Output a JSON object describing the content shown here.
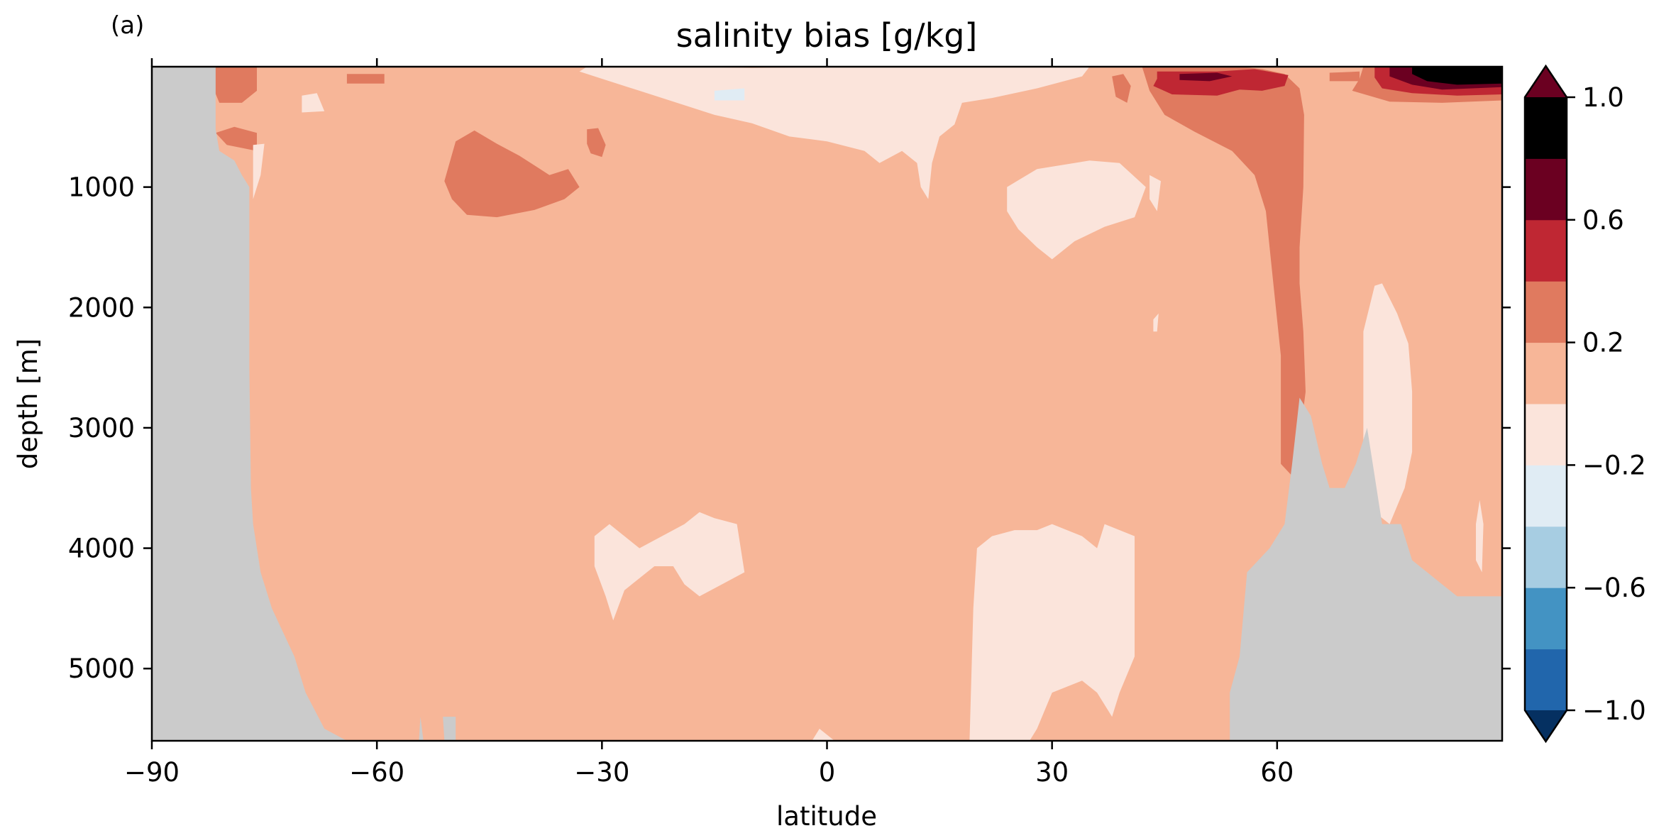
{
  "panel_label": "(a)",
  "chart_data": {
    "type": "heatmap",
    "title": "salinity bias [g/kg]",
    "xlabel": "latitude",
    "ylabel": "depth [m]",
    "xlim": [
      -90,
      90
    ],
    "ylim": [
      5600,
      0
    ],
    "y_inverted": true,
    "xticks": [
      -90,
      -60,
      -30,
      0,
      30,
      60
    ],
    "xtick_labels": [
      "−90",
      "−60",
      "−30",
      "0",
      "30",
      "60"
    ],
    "yticks": [
      1000,
      2000,
      3000,
      4000,
      5000
    ],
    "ytick_labels": [
      "1000",
      "2000",
      "3000",
      "4000",
      "5000"
    ],
    "background_level": [
      0,
      0.2
    ],
    "land_color": "#cbcbcb",
    "colorbar": {
      "levels": [
        -1.0,
        -0.8,
        -0.6,
        -0.4,
        -0.2,
        0,
        0.2,
        0.4,
        0.6,
        0.8,
        1.0
      ],
      "colors": [
        "#2166ac",
        "#4393c3",
        "#92c5de",
        "#d1e5f0",
        "#fbe3db",
        "#f4a582",
        "#d6604d",
        "#b2182b"
      ],
      "colors_full": [
        "#053061",
        "#2166ac",
        "#4393c3",
        "#a7cde2",
        "#e0ecf4",
        "#fbe4db",
        "#f7b698",
        "#e07a5f",
        "#bf2733",
        "#6b0021"
      ],
      "extend": "both",
      "tick_values": [
        1.0,
        0.6,
        0.2,
        -0.2,
        -0.6,
        -1.0
      ],
      "tick_labels": [
        "1.0",
        "0.6",
        "0.2",
        "−0.2",
        "−0.6",
        "−1.0"
      ]
    },
    "land_south": [
      [
        -90,
        0
      ],
      [
        -81.5,
        0
      ],
      [
        -81.5,
        520
      ],
      [
        -81,
        700
      ],
      [
        -79,
        780
      ],
      [
        -78,
        900
      ],
      [
        -77,
        1000
      ],
      [
        -77,
        2500
      ],
      [
        -76.8,
        3500
      ],
      [
        -76.5,
        3800
      ],
      [
        -75.5,
        4200
      ],
      [
        -74,
        4500
      ],
      [
        -72.5,
        4700
      ],
      [
        -71,
        4900
      ],
      [
        -69.5,
        5200
      ],
      [
        -67,
        5500
      ],
      [
        -64,
        5600
      ],
      [
        -90,
        5600
      ]
    ],
    "land_north": [
      [
        53.7,
        5600
      ],
      [
        53.7,
        5200
      ],
      [
        55,
        4900
      ],
      [
        56,
        4200
      ],
      [
        59,
        4000
      ],
      [
        61,
        3800
      ],
      [
        62,
        3300
      ],
      [
        63,
        2750
      ],
      [
        64.5,
        2900
      ],
      [
        66,
        3300
      ],
      [
        67,
        3500
      ],
      [
        69,
        3500
      ],
      [
        70.5,
        3300
      ],
      [
        72,
        3000
      ],
      [
        73,
        3400
      ],
      [
        74,
        3800
      ],
      [
        75,
        3800
      ],
      [
        76.5,
        3800
      ],
      [
        78,
        4100
      ],
      [
        80,
        4200
      ],
      [
        82,
        4300
      ],
      [
        84,
        4400
      ],
      [
        90,
        4400
      ],
      [
        90,
        5600
      ]
    ],
    "land_south_seamount": [
      [
        -54.4,
        5600
      ],
      [
        -54.2,
        5400
      ],
      [
        -53.8,
        5600
      ]
    ],
    "land_south_seamount2": [
      [
        -51,
        5600
      ],
      [
        -51.2,
        5400
      ],
      [
        -49.5,
        5400
      ],
      [
        -49.5,
        5600
      ]
    ],
    "positive_regions": [
      {
        "level": 0.3,
        "points": [
          [
            -82,
            0
          ],
          [
            -76,
            0
          ],
          [
            -76,
            200
          ],
          [
            -78,
            300
          ],
          [
            -81,
            300
          ],
          [
            -82,
            150
          ]
        ]
      },
      {
        "level": 0.3,
        "points": [
          [
            -81.5,
            550
          ],
          [
            -79,
            500
          ],
          [
            -76,
            550
          ],
          [
            -76,
            700
          ],
          [
            -80,
            650
          ]
        ]
      },
      {
        "level": 0.3,
        "points": [
          [
            -64,
            60
          ],
          [
            -59,
            60
          ],
          [
            -59,
            140
          ],
          [
            -64,
            140
          ]
        ]
      },
      {
        "level": 0.3,
        "points": [
          [
            -49.5,
            620
          ],
          [
            -47,
            530
          ],
          [
            -44,
            640
          ],
          [
            -41,
            740
          ],
          [
            -37,
            900
          ],
          [
            -34.5,
            850
          ],
          [
            -33,
            1000
          ],
          [
            -35,
            1100
          ],
          [
            -39,
            1190
          ],
          [
            -44,
            1250
          ],
          [
            -48,
            1230
          ],
          [
            -50,
            1100
          ],
          [
            -51,
            950
          ]
        ]
      },
      {
        "level": 0.3,
        "points": [
          [
            -32,
            520
          ],
          [
            -30.5,
            510
          ],
          [
            -29.5,
            650
          ],
          [
            -30,
            750
          ],
          [
            -31.5,
            720
          ],
          [
            -32,
            640
          ]
        ]
      },
      {
        "level": 0.3,
        "points": [
          [
            38,
            80
          ],
          [
            39.5,
            60
          ],
          [
            40.5,
            160
          ],
          [
            40,
            300
          ],
          [
            38.5,
            250
          ]
        ]
      },
      {
        "level": 0.3,
        "points": [
          [
            42,
            0
          ],
          [
            55,
            0
          ],
          [
            58,
            20
          ],
          [
            61,
            60
          ],
          [
            63,
            180
          ],
          [
            63.6,
            400
          ],
          [
            63.5,
            1000
          ],
          [
            63,
            1500
          ],
          [
            63,
            1800
          ],
          [
            63.5,
            2200
          ],
          [
            63.8,
            2700
          ],
          [
            63,
            3100
          ],
          [
            62,
            3400
          ],
          [
            60.5,
            3300
          ],
          [
            60.5,
            2400
          ],
          [
            59.5,
            1800
          ],
          [
            58.5,
            1200
          ],
          [
            57,
            900
          ],
          [
            54,
            700
          ],
          [
            49,
            540
          ],
          [
            45,
            400
          ],
          [
            43,
            200
          ]
        ]
      },
      {
        "level": 0.3,
        "points": [
          [
            67,
            50
          ],
          [
            71,
            40
          ],
          [
            71,
            120
          ],
          [
            67,
            120
          ]
        ]
      },
      {
        "level": 0.3,
        "points": [
          [
            71.5,
            0
          ],
          [
            90,
            0
          ],
          [
            90,
            280
          ],
          [
            82,
            300
          ],
          [
            75,
            290
          ],
          [
            70,
            200
          ],
          [
            71,
            100
          ]
        ]
      },
      {
        "level": 0.5,
        "points": [
          [
            44,
            40
          ],
          [
            52,
            40
          ],
          [
            57,
            20
          ],
          [
            61.5,
            70
          ],
          [
            61,
            160
          ],
          [
            58,
            200
          ],
          [
            55,
            190
          ],
          [
            52,
            240
          ],
          [
            46,
            230
          ],
          [
            43.5,
            160
          ],
          [
            44,
            100
          ]
        ]
      },
      {
        "level": 0.5,
        "points": [
          [
            73,
            0
          ],
          [
            90,
            0
          ],
          [
            90,
            230
          ],
          [
            84,
            240
          ],
          [
            78,
            220
          ],
          [
            74,
            180
          ],
          [
            73,
            90
          ]
        ]
      },
      {
        "level": 0.7,
        "points": [
          [
            47,
            60
          ],
          [
            52,
            50
          ],
          [
            54,
            80
          ],
          [
            51,
            120
          ],
          [
            47,
            110
          ]
        ]
      },
      {
        "level": 0.7,
        "points": [
          [
            75,
            0
          ],
          [
            90,
            0
          ],
          [
            90,
            170
          ],
          [
            82,
            190
          ],
          [
            78,
            150
          ],
          [
            75,
            80
          ]
        ]
      },
      {
        "level": 0.9,
        "points": [
          [
            78,
            0
          ],
          [
            90,
            0
          ],
          [
            90,
            140
          ],
          [
            84,
            150
          ],
          [
            80,
            120
          ],
          [
            78,
            60
          ]
        ]
      }
    ],
    "negative_regions": [
      {
        "level": -0.1,
        "points": [
          [
            -32,
            0
          ],
          [
            -20,
            0
          ],
          [
            -10,
            10
          ],
          [
            5,
            0
          ],
          [
            25,
            0
          ],
          [
            35,
            0
          ],
          [
            34,
            80
          ],
          [
            28,
            180
          ],
          [
            22,
            260
          ],
          [
            18,
            300
          ],
          [
            17,
            480
          ],
          [
            15,
            580
          ],
          [
            14,
            800
          ],
          [
            13.5,
            1100
          ],
          [
            12.5,
            1000
          ],
          [
            12,
            800
          ],
          [
            10,
            700
          ],
          [
            7,
            800
          ],
          [
            5,
            700
          ],
          [
            0,
            620
          ],
          [
            -5,
            580
          ],
          [
            -10,
            470
          ],
          [
            -15,
            400
          ],
          [
            -20,
            300
          ],
          [
            -25,
            200
          ],
          [
            -30,
            100
          ],
          [
            -33,
            40
          ]
        ]
      },
      {
        "level": -0.1,
        "points": [
          [
            -70,
            240
          ],
          [
            -68,
            220
          ],
          [
            -67,
            370
          ],
          [
            -70,
            380
          ]
        ]
      },
      {
        "level": -0.1,
        "points": [
          [
            -76.5,
            650
          ],
          [
            -75,
            640
          ],
          [
            -75.5,
            900
          ],
          [
            -76.5,
            1100
          ]
        ]
      },
      {
        "level": -0.1,
        "points": [
          [
            24,
            1000
          ],
          [
            28,
            850
          ],
          [
            35,
            780
          ],
          [
            39,
            800
          ],
          [
            42.5,
            1000
          ],
          [
            41,
            1250
          ],
          [
            37,
            1330
          ],
          [
            33,
            1450
          ],
          [
            30,
            1600
          ],
          [
            28,
            1500
          ],
          [
            25.5,
            1350
          ],
          [
            24,
            1200
          ]
        ]
      },
      {
        "level": -0.1,
        "points": [
          [
            43,
            900
          ],
          [
            44.5,
            950
          ],
          [
            44,
            1200
          ],
          [
            43,
            1100
          ]
        ]
      },
      {
        "level": -0.1,
        "points": [
          [
            71.5,
            2200
          ],
          [
            73,
            1820
          ],
          [
            74,
            1800
          ],
          [
            76,
            2050
          ],
          [
            77.5,
            2300
          ],
          [
            78,
            2700
          ],
          [
            78,
            3200
          ],
          [
            77,
            3500
          ],
          [
            75,
            3800
          ],
          [
            73,
            3700
          ],
          [
            71.5,
            3200
          ],
          [
            71.5,
            2700
          ]
        ]
      },
      {
        "level": -0.1,
        "points": [
          [
            -31,
            3900
          ],
          [
            -29,
            3800
          ],
          [
            -27,
            3900
          ],
          [
            -25,
            4000
          ],
          [
            -22,
            3900
          ],
          [
            -19,
            3800
          ],
          [
            -17,
            3700
          ],
          [
            -15,
            3750
          ],
          [
            -12,
            3800
          ],
          [
            -11,
            4200
          ],
          [
            -14,
            4300
          ],
          [
            -17,
            4400
          ],
          [
            -19,
            4300
          ],
          [
            -20.5,
            4150
          ],
          [
            -23,
            4150
          ],
          [
            -27,
            4350
          ],
          [
            -28.5,
            4600
          ],
          [
            -29.5,
            4400
          ],
          [
            -31,
            4150
          ]
        ]
      },
      {
        "level": -0.1,
        "points": [
          [
            19,
            5600
          ],
          [
            19.5,
            4500
          ],
          [
            20,
            4000
          ],
          [
            22,
            3900
          ],
          [
            25,
            3850
          ],
          [
            28,
            3850
          ],
          [
            30,
            3800
          ],
          [
            34,
            3900
          ],
          [
            36,
            4000
          ],
          [
            37,
            3800
          ],
          [
            41,
            3900
          ],
          [
            41,
            4900
          ],
          [
            39,
            5200
          ],
          [
            38,
            5400
          ],
          [
            36,
            5200
          ],
          [
            34,
            5100
          ],
          [
            30,
            5200
          ],
          [
            28,
            5500
          ],
          [
            27,
            5600
          ]
        ]
      },
      {
        "level": -0.1,
        "points": [
          [
            -2,
            5600
          ],
          [
            -1,
            5500
          ],
          [
            1,
            5600
          ]
        ]
      },
      {
        "level": -0.1,
        "points": [
          [
            86.5,
            3800
          ],
          [
            87,
            3600
          ],
          [
            87.5,
            3800
          ],
          [
            87.3,
            4200
          ],
          [
            86.5,
            4100
          ]
        ]
      },
      {
        "level": -0.1,
        "points": [
          [
            43.5,
            2100
          ],
          [
            44.2,
            2050
          ],
          [
            44,
            2200
          ],
          [
            43.5,
            2200
          ]
        ]
      },
      {
        "level": -0.3,
        "points": [
          [
            -15,
            200
          ],
          [
            -11,
            180
          ],
          [
            -11,
            280
          ],
          [
            -15,
            280
          ]
        ]
      }
    ]
  }
}
